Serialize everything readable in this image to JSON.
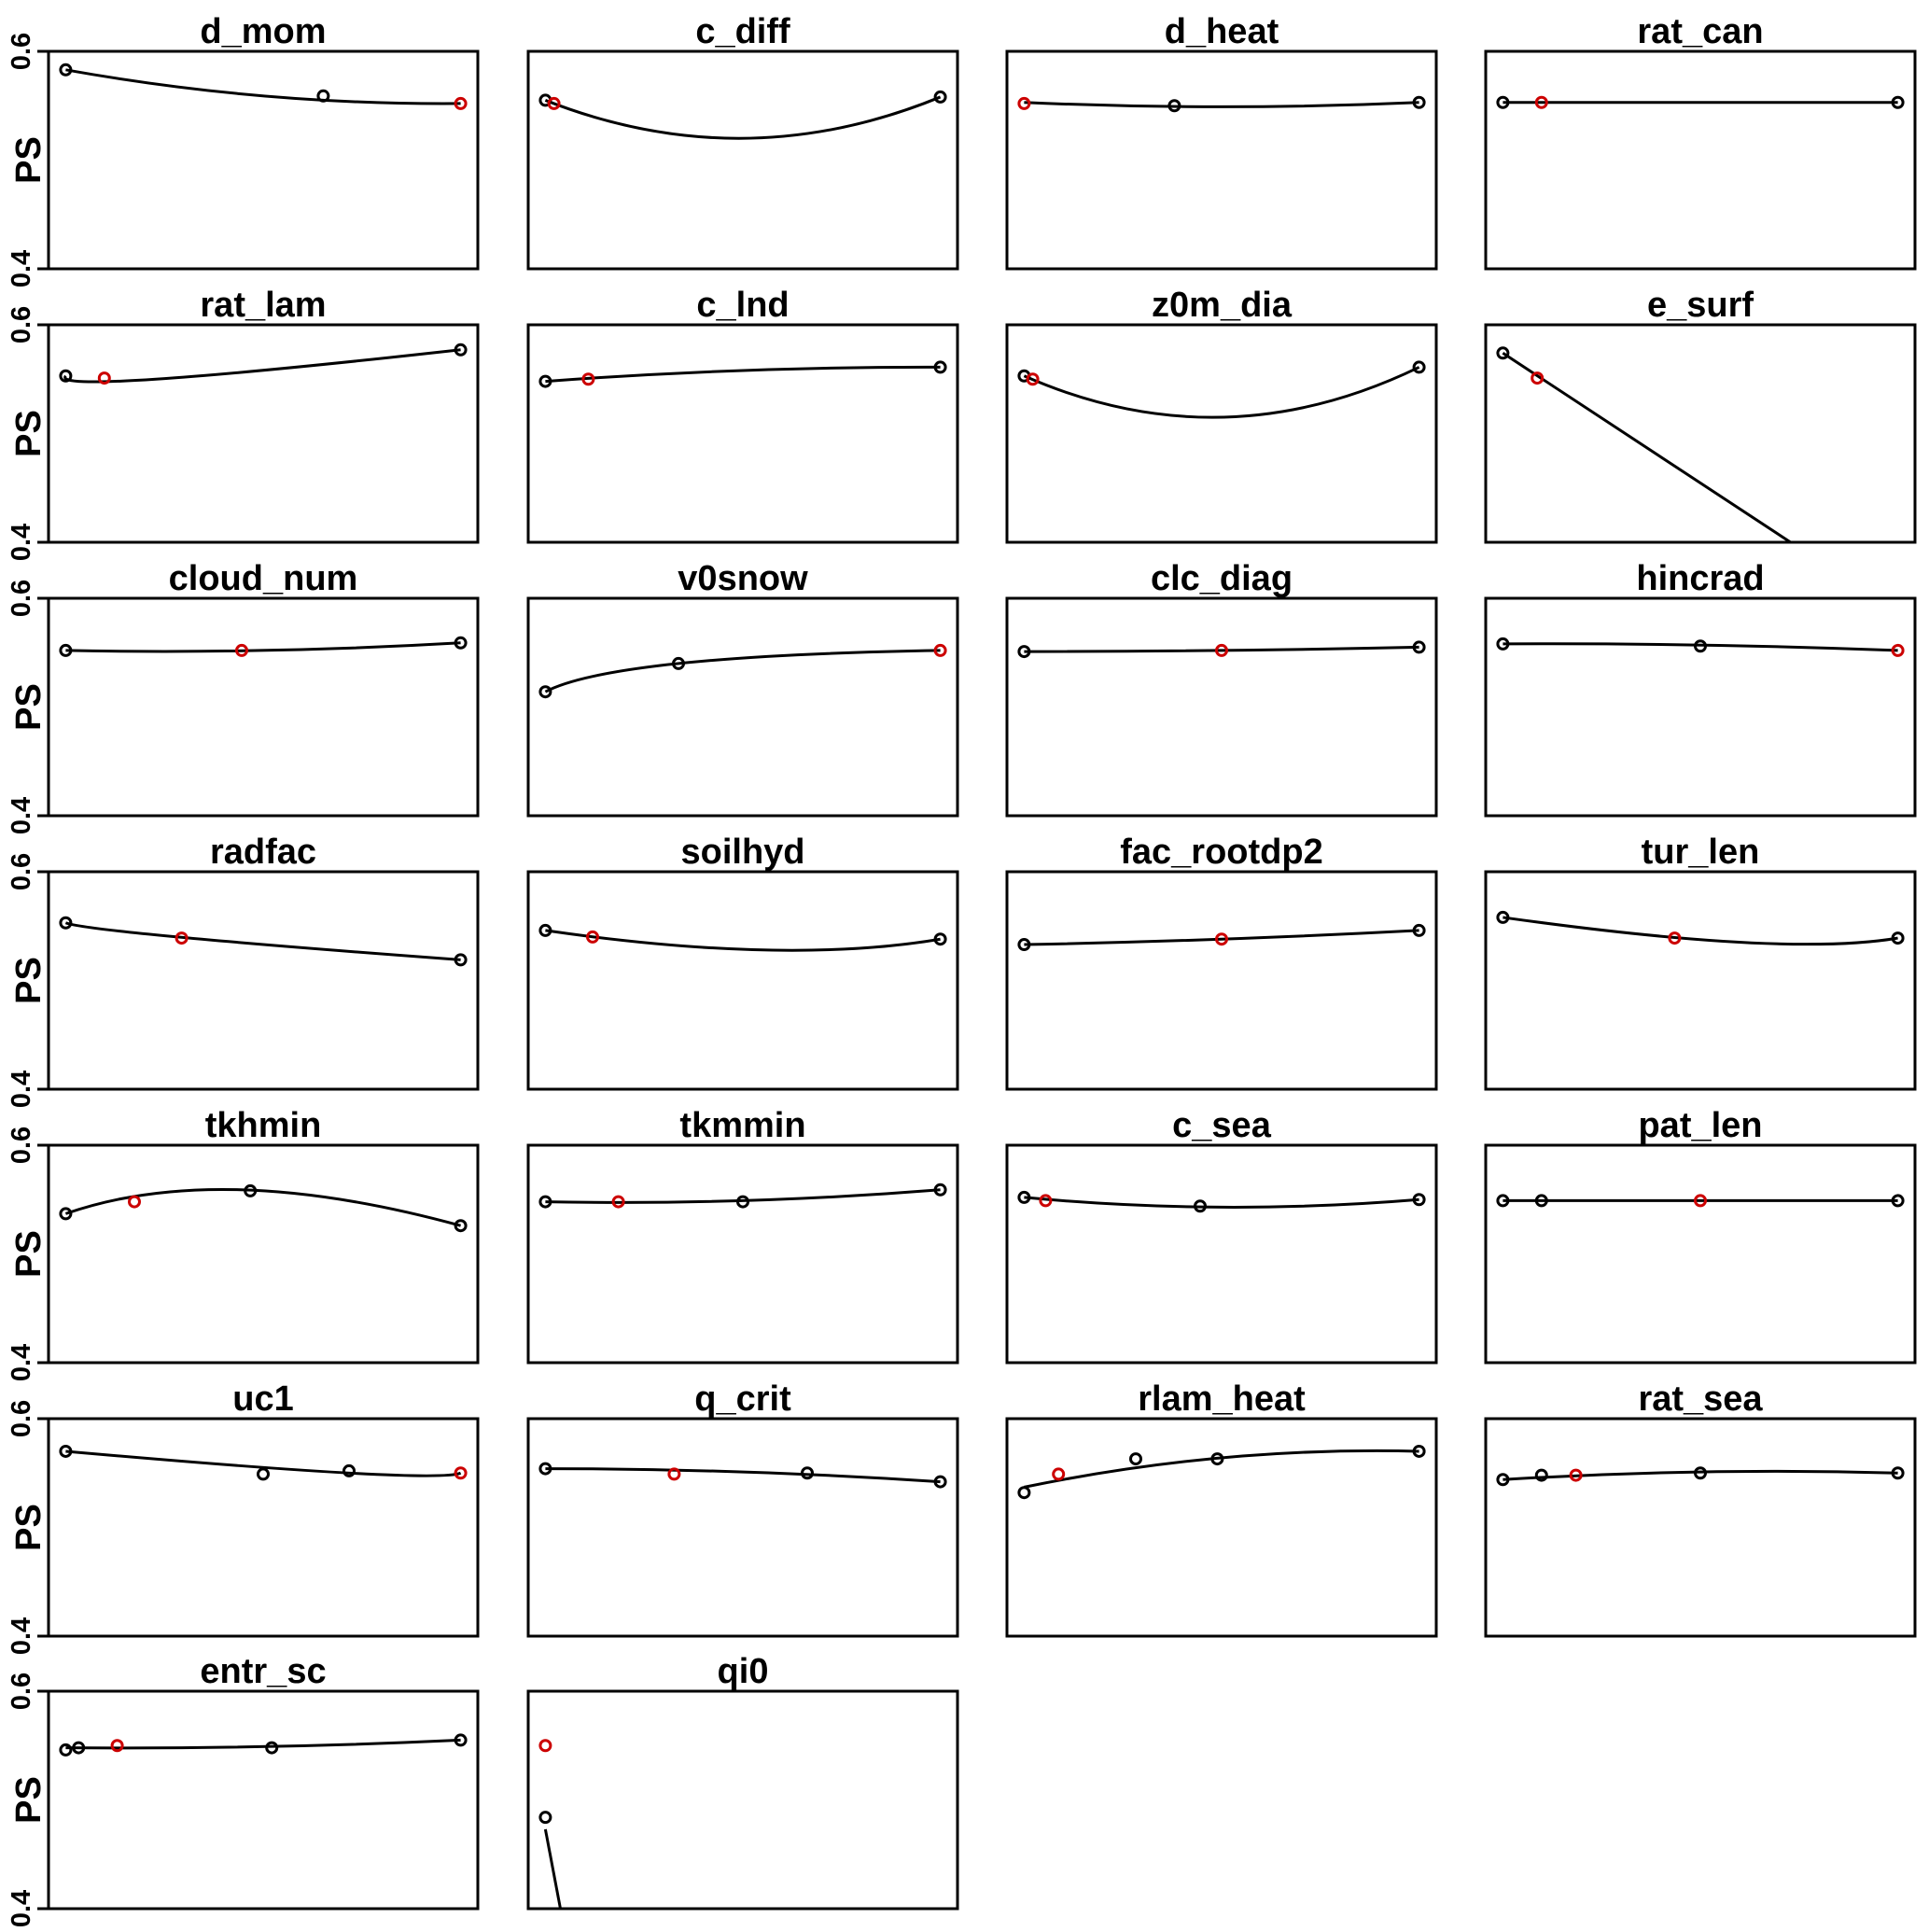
{
  "chart_data": {
    "type": "line",
    "grid": false,
    "point_colors": {
      "default": "#000000",
      "highlight": "#cc0000"
    },
    "panels": [
      {
        "title": "d_mom",
        "ylabel": "PS",
        "yticks": [
          "0.4",
          "0.6"
        ],
        "ylim": [
          0.4,
          0.6
        ],
        "curve": [
          [
            0.04,
            0.583
          ],
          [
            0.5,
            0.559
          ],
          [
            0.96,
            0.552
          ]
        ],
        "points": [
          {
            "x": 0.04,
            "y": 0.583
          },
          {
            "x": 0.64,
            "y": 0.559
          },
          {
            "x": 0.96,
            "y": 0.552,
            "highlight": true
          }
        ]
      },
      {
        "title": "c_diff",
        "yticks": [],
        "ylim": [
          0.4,
          0.6
        ],
        "curve": [
          [
            0.04,
            0.555
          ],
          [
            0.5,
            0.52
          ],
          [
            0.96,
            0.558
          ]
        ],
        "points": [
          {
            "x": 0.04,
            "y": 0.555
          },
          {
            "x": 0.06,
            "y": 0.552,
            "highlight": true
          },
          {
            "x": 0.96,
            "y": 0.558
          }
        ]
      },
      {
        "title": "d_heat",
        "yticks": [],
        "ylim": [
          0.4,
          0.6
        ],
        "curve": [
          [
            0.04,
            0.553
          ],
          [
            0.5,
            0.549
          ],
          [
            0.96,
            0.553
          ]
        ],
        "points": [
          {
            "x": 0.04,
            "y": 0.552,
            "highlight": true
          },
          {
            "x": 0.39,
            "y": 0.55
          },
          {
            "x": 0.96,
            "y": 0.553
          }
        ]
      },
      {
        "title": "rat_can",
        "yticks": [],
        "ylim": [
          0.4,
          0.6
        ],
        "curve": [
          [
            0.04,
            0.553
          ],
          [
            0.5,
            0.553
          ],
          [
            0.96,
            0.553
          ]
        ],
        "points": [
          {
            "x": 0.04,
            "y": 0.553
          },
          {
            "x": 0.13,
            "y": 0.553,
            "highlight": true
          },
          {
            "x": 0.96,
            "y": 0.553
          }
        ]
      },
      {
        "title": "rat_lam",
        "ylabel": "PS",
        "yticks": [
          "0.4",
          "0.6"
        ],
        "ylim": [
          0.4,
          0.6
        ],
        "curve": [
          [
            0.04,
            0.553
          ],
          [
            0.25,
            0.55
          ],
          [
            0.96,
            0.577
          ]
        ],
        "points": [
          {
            "x": 0.04,
            "y": 0.553
          },
          {
            "x": 0.13,
            "y": 0.551,
            "highlight": true
          },
          {
            "x": 0.96,
            "y": 0.577
          }
        ]
      },
      {
        "title": "c_lnd",
        "yticks": [],
        "ylim": [
          0.4,
          0.6
        ],
        "curve": [
          [
            0.04,
            0.548
          ],
          [
            0.5,
            0.558
          ],
          [
            0.96,
            0.561
          ]
        ],
        "points": [
          {
            "x": 0.04,
            "y": 0.548
          },
          {
            "x": 0.14,
            "y": 0.55,
            "highlight": true
          },
          {
            "x": 0.96,
            "y": 0.561
          }
        ]
      },
      {
        "title": "z0m_dia",
        "yticks": [],
        "ylim": [
          0.4,
          0.6
        ],
        "curve": [
          [
            0.04,
            0.553
          ],
          [
            0.5,
            0.515
          ],
          [
            0.96,
            0.561
          ]
        ],
        "points": [
          {
            "x": 0.04,
            "y": 0.553
          },
          {
            "x": 0.06,
            "y": 0.55,
            "highlight": true
          },
          {
            "x": 0.96,
            "y": 0.561
          }
        ]
      },
      {
        "title": "e_surf",
        "yticks": [],
        "ylim": [
          0.4,
          0.6
        ],
        "curve": [
          [
            0.04,
            0.574
          ],
          [
            0.71,
            0.4
          ]
        ],
        "points": [
          {
            "x": 0.04,
            "y": 0.574
          },
          {
            "x": 0.12,
            "y": 0.551,
            "highlight": true
          }
        ]
      },
      {
        "title": "cloud_num",
        "ylabel": "PS",
        "yticks": [
          "0.4",
          "0.6"
        ],
        "ylim": [
          0.4,
          0.6
        ],
        "curve": [
          [
            0.04,
            0.552
          ],
          [
            0.5,
            0.552
          ],
          [
            0.96,
            0.559
          ]
        ],
        "points": [
          {
            "x": 0.04,
            "y": 0.552
          },
          {
            "x": 0.45,
            "y": 0.552,
            "highlight": true
          },
          {
            "x": 0.96,
            "y": 0.559
          }
        ]
      },
      {
        "title": "v0snow",
        "yticks": [],
        "ylim": [
          0.4,
          0.6
        ],
        "curve": [
          [
            0.04,
            0.514
          ],
          [
            0.35,
            0.54
          ],
          [
            0.96,
            0.552
          ]
        ],
        "points": [
          {
            "x": 0.04,
            "y": 0.514
          },
          {
            "x": 0.35,
            "y": 0.54
          },
          {
            "x": 0.96,
            "y": 0.552,
            "highlight": true
          }
        ]
      },
      {
        "title": "clc_diag",
        "yticks": [],
        "ylim": [
          0.4,
          0.6
        ],
        "curve": [
          [
            0.04,
            0.551
          ],
          [
            0.5,
            0.552
          ],
          [
            0.96,
            0.555
          ]
        ],
        "points": [
          {
            "x": 0.04,
            "y": 0.551
          },
          {
            "x": 0.5,
            "y": 0.552,
            "highlight": true
          },
          {
            "x": 0.96,
            "y": 0.555
          }
        ]
      },
      {
        "title": "hincrad",
        "yticks": [],
        "ylim": [
          0.4,
          0.6
        ],
        "curve": [
          [
            0.04,
            0.558
          ],
          [
            0.5,
            0.557
          ],
          [
            0.96,
            0.552
          ]
        ],
        "points": [
          {
            "x": 0.04,
            "y": 0.558
          },
          {
            "x": 0.5,
            "y": 0.556
          },
          {
            "x": 0.96,
            "y": 0.552,
            "highlight": true
          }
        ]
      },
      {
        "title": "radfac",
        "ylabel": "PS",
        "yticks": [
          "0.4",
          "0.6"
        ],
        "ylim": [
          0.4,
          0.6
        ],
        "curve": [
          [
            0.04,
            0.553
          ],
          [
            0.3,
            0.54
          ],
          [
            0.96,
            0.519
          ]
        ],
        "points": [
          {
            "x": 0.04,
            "y": 0.553
          },
          {
            "x": 0.31,
            "y": 0.539,
            "highlight": true
          },
          {
            "x": 0.96,
            "y": 0.519
          }
        ]
      },
      {
        "title": "soilhyd",
        "yticks": [],
        "ylim": [
          0.4,
          0.6
        ],
        "curve": [
          [
            0.04,
            0.546
          ],
          [
            0.55,
            0.528
          ],
          [
            0.96,
            0.538
          ]
        ],
        "points": [
          {
            "x": 0.04,
            "y": 0.546
          },
          {
            "x": 0.15,
            "y": 0.54,
            "highlight": true
          },
          {
            "x": 0.96,
            "y": 0.538
          }
        ]
      },
      {
        "title": "fac_rootdp2",
        "yticks": [],
        "ylim": [
          0.4,
          0.6
        ],
        "curve": [
          [
            0.04,
            0.533
          ],
          [
            0.5,
            0.538
          ],
          [
            0.96,
            0.546
          ]
        ],
        "points": [
          {
            "x": 0.04,
            "y": 0.533
          },
          {
            "x": 0.5,
            "y": 0.538,
            "highlight": true
          },
          {
            "x": 0.96,
            "y": 0.546
          }
        ]
      },
      {
        "title": "tur_len",
        "yticks": [],
        "ylim": [
          0.4,
          0.6
        ],
        "curve": [
          [
            0.04,
            0.558
          ],
          [
            0.6,
            0.535
          ],
          [
            0.96,
            0.539
          ]
        ],
        "points": [
          {
            "x": 0.04,
            "y": 0.558
          },
          {
            "x": 0.44,
            "y": 0.539,
            "highlight": true
          },
          {
            "x": 0.96,
            "y": 0.539
          }
        ]
      },
      {
        "title": "tkhmin",
        "ylabel": "PS",
        "yticks": [
          "0.4",
          "0.6"
        ],
        "ylim": [
          0.4,
          0.6
        ],
        "curve": [
          [
            0.04,
            0.537
          ],
          [
            0.45,
            0.559
          ],
          [
            0.96,
            0.526
          ]
        ],
        "points": [
          {
            "x": 0.04,
            "y": 0.537
          },
          {
            "x": 0.2,
            "y": 0.548,
            "highlight": true
          },
          {
            "x": 0.47,
            "y": 0.558
          },
          {
            "x": 0.96,
            "y": 0.526
          }
        ]
      },
      {
        "title": "tkmmin",
        "yticks": [],
        "ylim": [
          0.4,
          0.6
        ],
        "curve": [
          [
            0.04,
            0.548
          ],
          [
            0.5,
            0.549
          ],
          [
            0.96,
            0.559
          ]
        ],
        "points": [
          {
            "x": 0.04,
            "y": 0.548
          },
          {
            "x": 0.21,
            "y": 0.548,
            "highlight": true
          },
          {
            "x": 0.5,
            "y": 0.548
          },
          {
            "x": 0.96,
            "y": 0.559
          }
        ]
      },
      {
        "title": "c_sea",
        "yticks": [],
        "ylim": [
          0.4,
          0.6
        ],
        "curve": [
          [
            0.04,
            0.552
          ],
          [
            0.5,
            0.543
          ],
          [
            0.96,
            0.55
          ]
        ],
        "points": [
          {
            "x": 0.04,
            "y": 0.552
          },
          {
            "x": 0.09,
            "y": 0.549,
            "highlight": true
          },
          {
            "x": 0.45,
            "y": 0.544
          },
          {
            "x": 0.96,
            "y": 0.55
          }
        ]
      },
      {
        "title": "pat_len",
        "yticks": [],
        "ylim": [
          0.4,
          0.6
        ],
        "curve": [
          [
            0.04,
            0.549
          ],
          [
            0.5,
            0.549
          ],
          [
            0.96,
            0.549
          ]
        ],
        "points": [
          {
            "x": 0.04,
            "y": 0.549
          },
          {
            "x": 0.13,
            "y": 0.549
          },
          {
            "x": 0.5,
            "y": 0.549,
            "highlight": true
          },
          {
            "x": 0.96,
            "y": 0.549
          }
        ]
      },
      {
        "title": "uc1",
        "ylabel": "PS",
        "yticks": [
          "0.4",
          "0.6"
        ],
        "ylim": [
          0.4,
          0.6
        ],
        "curve": [
          [
            0.04,
            0.57
          ],
          [
            0.7,
            0.55
          ],
          [
            0.96,
            0.55
          ]
        ],
        "points": [
          {
            "x": 0.04,
            "y": 0.57
          },
          {
            "x": 0.5,
            "y": 0.549
          },
          {
            "x": 0.7,
            "y": 0.552
          },
          {
            "x": 0.96,
            "y": 0.55,
            "highlight": true
          }
        ]
      },
      {
        "title": "q_crit",
        "yticks": [],
        "ylim": [
          0.4,
          0.6
        ],
        "curve": [
          [
            0.04,
            0.554
          ],
          [
            0.5,
            0.551
          ],
          [
            0.96,
            0.542
          ]
        ],
        "points": [
          {
            "x": 0.04,
            "y": 0.554
          },
          {
            "x": 0.34,
            "y": 0.549,
            "highlight": true
          },
          {
            "x": 0.65,
            "y": 0.55
          },
          {
            "x": 0.96,
            "y": 0.542
          }
        ]
      },
      {
        "title": "rlam_heat",
        "yticks": [],
        "ylim": [
          0.4,
          0.6
        ],
        "curve": [
          [
            0.04,
            0.537
          ],
          [
            0.5,
            0.564
          ],
          [
            0.96,
            0.57
          ]
        ],
        "points": [
          {
            "x": 0.04,
            "y": 0.532
          },
          {
            "x": 0.12,
            "y": 0.549,
            "highlight": true
          },
          {
            "x": 0.3,
            "y": 0.563
          },
          {
            "x": 0.49,
            "y": 0.563
          },
          {
            "x": 0.96,
            "y": 0.57
          }
        ]
      },
      {
        "title": "rat_sea",
        "yticks": [],
        "ylim": [
          0.4,
          0.6
        ],
        "curve": [
          [
            0.04,
            0.544
          ],
          [
            0.5,
            0.551
          ],
          [
            0.96,
            0.55
          ]
        ],
        "points": [
          {
            "x": 0.04,
            "y": 0.544
          },
          {
            "x": 0.13,
            "y": 0.548
          },
          {
            "x": 0.21,
            "y": 0.548,
            "highlight": true
          },
          {
            "x": 0.5,
            "y": 0.55
          },
          {
            "x": 0.96,
            "y": 0.55
          }
        ]
      },
      {
        "title": "entr_sc",
        "ylabel": "PS",
        "yticks": [
          "0.4",
          "0.6"
        ],
        "ylim": [
          0.4,
          0.6
        ],
        "curve": [
          [
            0.04,
            0.548
          ],
          [
            0.5,
            0.549
          ],
          [
            0.96,
            0.555
          ]
        ],
        "points": [
          {
            "x": 0.04,
            "y": 0.546
          },
          {
            "x": 0.07,
            "y": 0.548
          },
          {
            "x": 0.16,
            "y": 0.55,
            "highlight": true
          },
          {
            "x": 0.52,
            "y": 0.548
          },
          {
            "x": 0.96,
            "y": 0.555
          }
        ]
      },
      {
        "title": "qi0",
        "yticks": [],
        "ylim": [
          0.4,
          0.6
        ],
        "curve": [
          [
            0.04,
            0.473
          ],
          [
            0.075,
            0.4
          ]
        ],
        "points": [
          {
            "x": 0.04,
            "y": 0.55,
            "highlight": true
          },
          {
            "x": 0.04,
            "y": 0.484
          }
        ]
      }
    ]
  }
}
